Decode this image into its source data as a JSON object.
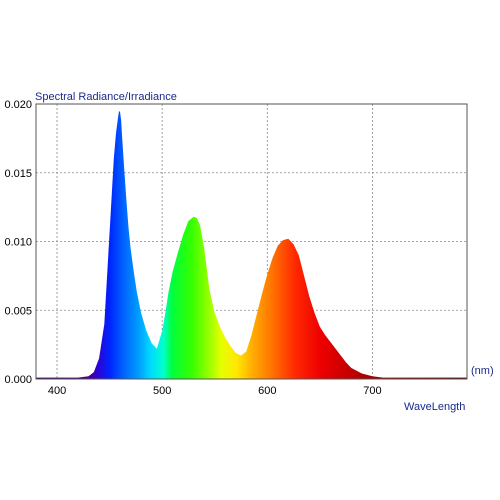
{
  "chart_data": {
    "type": "area",
    "title": "Spectral Radiance/Irradiance",
    "xlabel": "WaveLength",
    "xunit": "(nm)",
    "xlim": [
      380,
      790
    ],
    "ylim": [
      0,
      0.02
    ],
    "x_ticks": [
      400,
      500,
      600,
      700
    ],
    "y_ticks": [
      0.0,
      0.005,
      0.01,
      0.015,
      0.02
    ],
    "y_tick_labels": [
      "0.000",
      "0.005",
      "0.010",
      "0.015",
      "0.020"
    ],
    "grid": true,
    "fill": "visible-spectrum",
    "series": [
      {
        "x": [
          380,
          400,
          420,
          430,
          435,
          440,
          445,
          448,
          451,
          454,
          456,
          458,
          459,
          460,
          461,
          462,
          464,
          466,
          468,
          470,
          473,
          476,
          480,
          485,
          490,
          495,
          500,
          503,
          506,
          510,
          515,
          520,
          525,
          530,
          533,
          536,
          540,
          545,
          550,
          555,
          560,
          565,
          570,
          575,
          580,
          585,
          590,
          595,
          600,
          605,
          610,
          615,
          620,
          625,
          630,
          635,
          640,
          645,
          650,
          655,
          660,
          665,
          670,
          675,
          680,
          690,
          700,
          710,
          720,
          740,
          760,
          780,
          790
        ],
        "y": [
          0.0001,
          0.0001,
          0.0001,
          0.0002,
          0.0005,
          0.0015,
          0.004,
          0.008,
          0.012,
          0.016,
          0.0178,
          0.019,
          0.0195,
          0.0194,
          0.0188,
          0.0175,
          0.0152,
          0.013,
          0.011,
          0.0095,
          0.0078,
          0.0063,
          0.0048,
          0.0035,
          0.0026,
          0.0022,
          0.0035,
          0.0048,
          0.0063,
          0.0078,
          0.0092,
          0.0105,
          0.0115,
          0.0118,
          0.0117,
          0.0112,
          0.0095,
          0.0065,
          0.0048,
          0.0038,
          0.003,
          0.0024,
          0.0019,
          0.0017,
          0.002,
          0.0032,
          0.0047,
          0.0062,
          0.0076,
          0.0088,
          0.0097,
          0.0101,
          0.0102,
          0.0098,
          0.009,
          0.0075,
          0.006,
          0.0048,
          0.0038,
          0.0032,
          0.0027,
          0.0022,
          0.0017,
          0.0012,
          0.0008,
          0.0004,
          0.0002,
          0.0001,
          0.0001,
          0.0001,
          0.0001,
          0.0001,
          0.0001
        ]
      }
    ]
  }
}
